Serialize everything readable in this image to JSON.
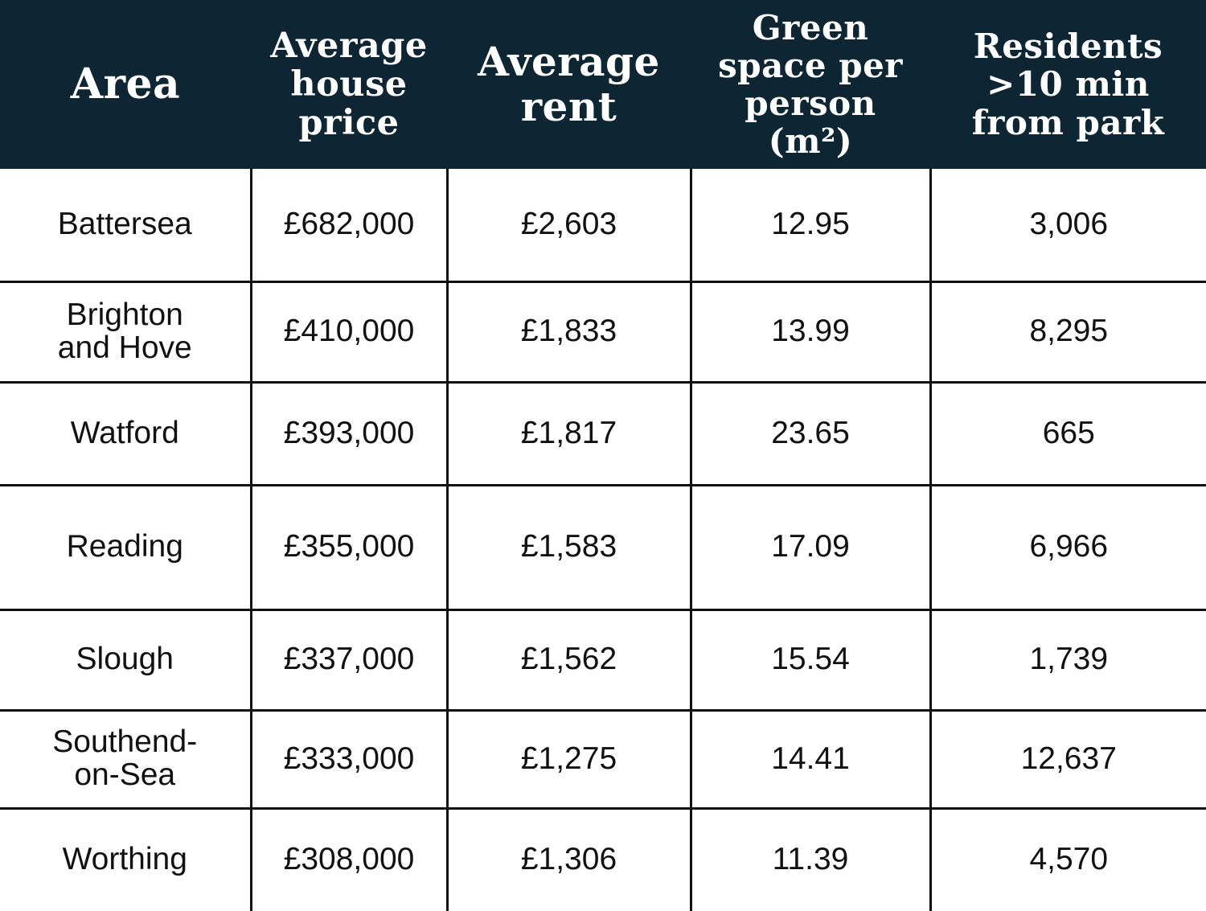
{
  "table": {
    "headers": {
      "area": "Area",
      "price": "Average\nhouse\nprice",
      "rent": "Average\nrent",
      "green": "Green\nspace per\nperson (m²)",
      "residents": "Residents\n>10 min\nfrom park"
    },
    "rows": [
      {
        "area": "Battersea",
        "price": "£682,000",
        "rent": "£2,603",
        "green": "12.95",
        "residents": "3,006"
      },
      {
        "area": "Brighton\nand Hove",
        "price": "£410,000",
        "rent": "£1,833",
        "green": "13.99",
        "residents": "8,295"
      },
      {
        "area": "Watford",
        "price": "£393,000",
        "rent": "£1,817",
        "green": "23.65",
        "residents": "665"
      },
      {
        "area": "Reading",
        "price": "£355,000",
        "rent": "£1,583",
        "green": "17.09",
        "residents": "6,966"
      },
      {
        "area": "Slough",
        "price": "£337,000",
        "rent": "£1,562",
        "green": "15.54",
        "residents": "1,739"
      },
      {
        "area": "Southend-\non-Sea",
        "price": "£333,000",
        "rent": "£1,275",
        "green": "14.41",
        "residents": "12,637"
      },
      {
        "area": "Worthing",
        "price": "£308,000",
        "rent": "£1,306",
        "green": "11.39",
        "residents": "4,570"
      }
    ]
  },
  "colors": {
    "header_background": "#0e2633",
    "header_text": "#ffffff",
    "grid_lines": "#111111"
  }
}
